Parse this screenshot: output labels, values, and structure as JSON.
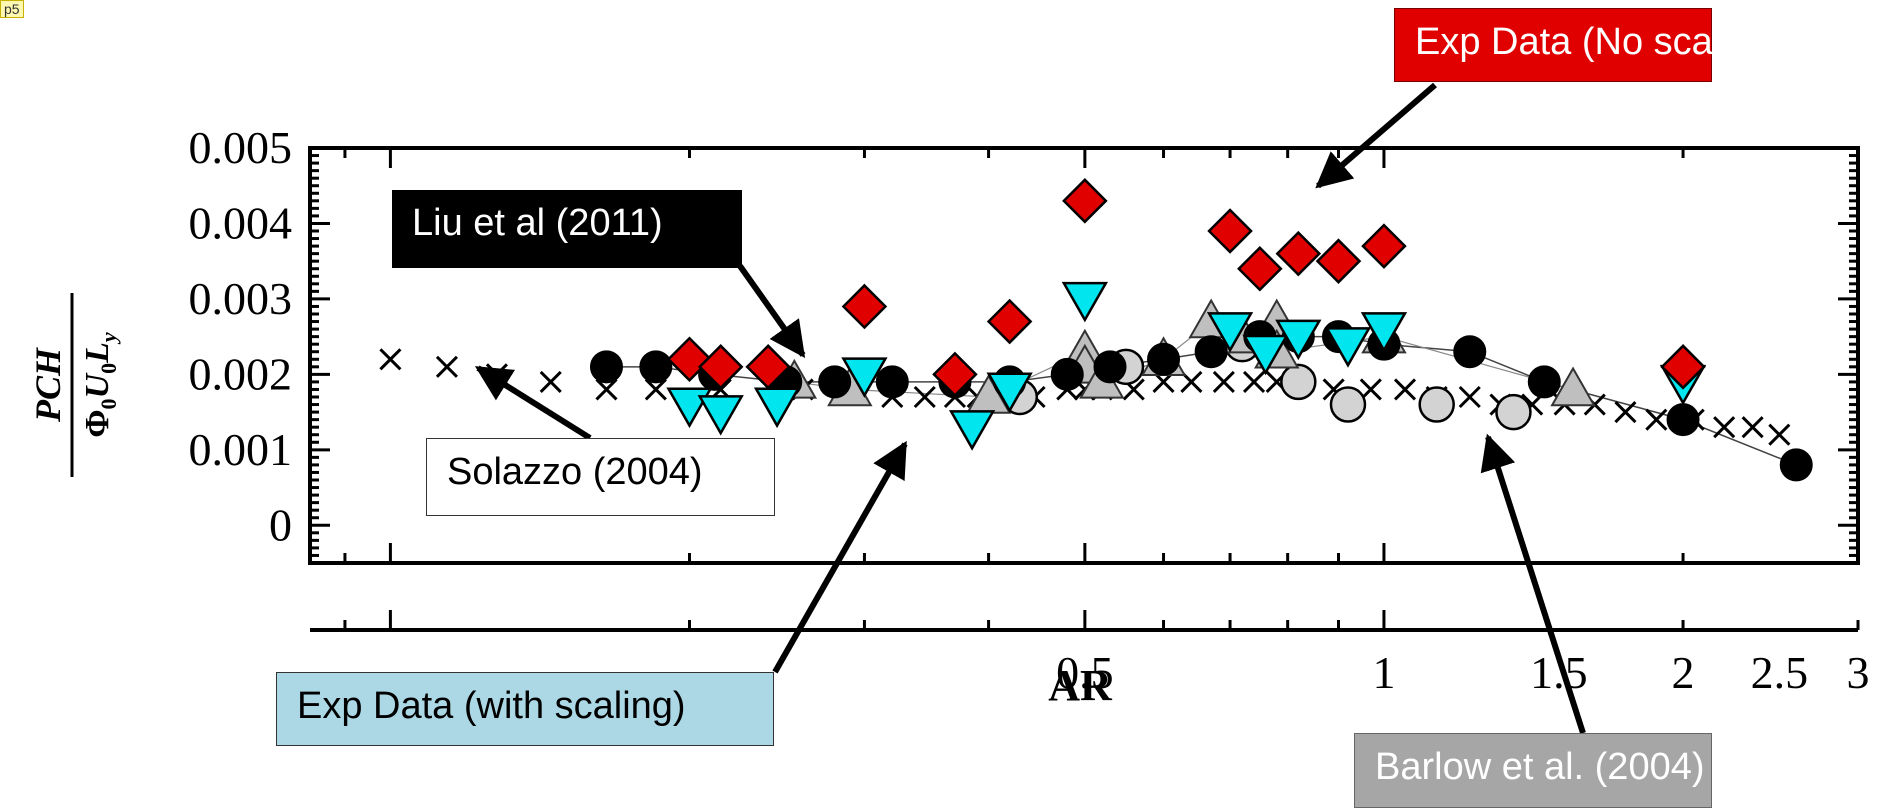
{
  "tag": "p5",
  "labels": {
    "exp_noscale": "Exp Data (No scaling)",
    "liu": "Liu et al (2011)",
    "solazzo": "Solazzo (2004)",
    "exp_scale": "Exp Data (with scaling)",
    "barlow": "Barlow et al. (2004)"
  },
  "colors": {
    "exp_noscale": "#e00000",
    "exp_scale": "#00e5ee",
    "liu": "#000000",
    "barlow_circle": "#d3d3d3",
    "barlow_triangle": "#bfbfbf",
    "solazzo": "#000000"
  },
  "chart_data": {
    "type": "scatter",
    "xlabel": "AR",
    "ylabel": {
      "num": "PCH",
      "den_phi": "Φ",
      "den_sub0": "0",
      "den_u": "U",
      "den_sub1": "0",
      "den_l": "L",
      "den_sub2": "y"
    },
    "x_scale": "log",
    "xlim": [
      0.083,
      3.0
    ],
    "ylim": [
      -0.0005,
      0.005
    ],
    "x_ticklabels": [
      {
        "v": 0.5,
        "t": "0.5"
      },
      {
        "v": 1,
        "t": "1"
      },
      {
        "v": 1.5,
        "t": "1.5"
      },
      {
        "v": 2,
        "t": "2"
      },
      {
        "v": 2.5,
        "t": "2.5"
      },
      {
        "v": 3,
        "t": "3"
      }
    ],
    "y_ticklabels": [
      "0",
      "0.001",
      "0.002",
      "0.003",
      "0.004",
      "0.005"
    ],
    "y_ticks": [
      0,
      0.001,
      0.002,
      0.003,
      0.004,
      0.005
    ],
    "series": [
      {
        "marker": "diamond",
        "x": [
          0.2,
          0.215,
          0.24,
          0.3,
          0.37,
          0.42,
          0.5,
          0.7,
          0.75,
          0.82,
          0.9,
          1.0,
          2.0
        ],
        "y": [
          0.0022,
          0.0021,
          0.0021,
          0.0029,
          0.002,
          0.0027,
          0.0043,
          0.0039,
          0.0034,
          0.0036,
          0.0035,
          0.0037,
          0.0021
        ]
      },
      {
        "marker": "triangle-down",
        "x": [
          0.2,
          0.215,
          0.245,
          0.3,
          0.385,
          0.42,
          0.5,
          0.7,
          0.76,
          0.82,
          0.92,
          1.0,
          2.0
        ],
        "y": [
          0.0016,
          0.0015,
          0.0016,
          0.002,
          0.0013,
          0.0018,
          0.003,
          0.0026,
          0.0023,
          0.0025,
          0.0024,
          0.0026,
          0.0019
        ]
      },
      {
        "marker": "circle",
        "x": [
          0.165,
          0.185,
          0.212,
          0.25,
          0.28,
          0.32,
          0.37,
          0.42,
          0.48,
          0.53,
          0.6,
          0.67,
          0.75,
          0.82,
          0.9,
          1.0,
          1.22,
          1.45,
          2.0,
          2.6
        ],
        "y": [
          0.0021,
          0.0021,
          0.002,
          0.0019,
          0.0019,
          0.0019,
          0.0019,
          0.0019,
          0.002,
          0.0021,
          0.0022,
          0.0023,
          0.0025,
          0.0025,
          0.0025,
          0.0024,
          0.0023,
          0.0019,
          0.0014,
          0.0008
        ]
      },
      {
        "marker": "triangle-up",
        "x": [
          0.255,
          0.29,
          0.4,
          0.5,
          0.5,
          0.52,
          0.6,
          0.67,
          0.72,
          0.78,
          0.78,
          1.0,
          1.55
        ],
        "y": [
          0.0019,
          0.0018,
          0.0017,
          0.0023,
          0.0021,
          0.0019,
          0.0022,
          0.0027,
          0.0025,
          0.0027,
          0.0023,
          0.0025,
          0.0018
        ]
      },
      {
        "marker": "circle",
        "x": [
          0.43,
          0.55,
          0.72,
          0.82,
          0.92,
          1.13,
          1.35
        ],
        "y": [
          0.0017,
          0.0021,
          0.0024,
          0.0019,
          0.0016,
          0.0016,
          0.0015
        ]
      },
      {
        "marker": "x",
        "x": [
          0.1,
          0.114,
          0.128,
          0.145,
          0.165,
          0.185,
          0.215,
          0.26,
          0.285,
          0.295,
          0.32,
          0.345,
          0.37,
          0.39,
          0.415,
          0.445,
          0.48,
          0.5,
          0.52,
          0.56,
          0.6,
          0.64,
          0.69,
          0.74,
          0.78,
          0.83,
          0.89,
          0.97,
          1.05,
          1.13,
          1.22,
          1.31,
          1.41,
          1.52,
          1.63,
          1.75,
          1.88,
          2.05,
          2.2,
          2.35,
          2.5
        ],
        "y": [
          0.0022,
          0.0021,
          0.002,
          0.0019,
          0.0018,
          0.0018,
          0.0018,
          0.0018,
          0.0018,
          0.0018,
          0.0017,
          0.0017,
          0.0017,
          0.0017,
          0.0017,
          0.0017,
          0.0018,
          0.0018,
          0.0018,
          0.0018,
          0.0019,
          0.0019,
          0.0019,
          0.0019,
          0.0019,
          0.0019,
          0.0018,
          0.0018,
          0.0018,
          0.0017,
          0.0017,
          0.0016,
          0.0016,
          0.0016,
          0.0016,
          0.0015,
          0.0014,
          0.0014,
          0.0013,
          0.0013,
          0.0012
        ]
      }
    ]
  }
}
